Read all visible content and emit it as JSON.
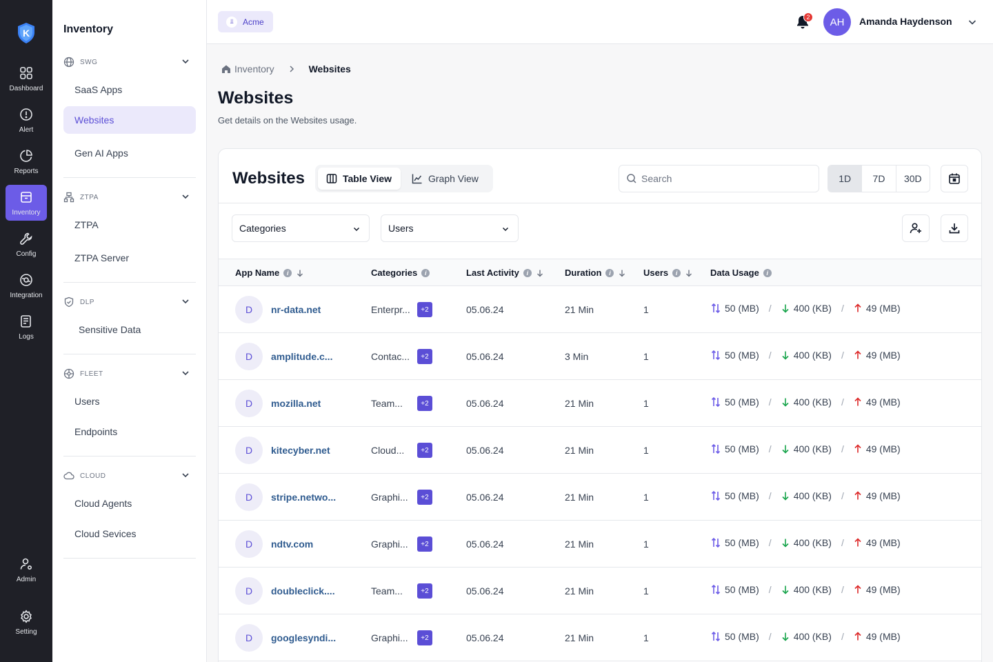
{
  "rail": {
    "items": [
      {
        "label": "Dashboard",
        "icon": "grid-icon"
      },
      {
        "label": "Alert",
        "icon": "alert-icon"
      },
      {
        "label": "Reports",
        "icon": "pie-chart-icon"
      },
      {
        "label": "Inventory",
        "icon": "archive-icon"
      },
      {
        "label": "Config",
        "icon": "wrench-icon"
      },
      {
        "label": "Integration",
        "icon": "integration-icon"
      },
      {
        "label": "Logs",
        "icon": "logs-icon"
      }
    ],
    "admin": "Admin",
    "setting": "Setting",
    "active": "Inventory"
  },
  "sidebar": {
    "title": "Inventory",
    "sections": [
      {
        "name": "SWG",
        "items": [
          "SaaS Apps",
          "Websites",
          "Gen AI Apps"
        ]
      },
      {
        "name": "ZTPA",
        "items": [
          "ZTPA",
          "ZTPA Server"
        ]
      },
      {
        "name": "DLP",
        "items": [
          "Sensitive Data"
        ]
      },
      {
        "name": "FLEET",
        "items": [
          "Users",
          "Endpoints"
        ]
      },
      {
        "name": "CLOUD",
        "items": [
          "Cloud Agents",
          "Cloud Sevices"
        ]
      }
    ],
    "active_item": "Websites"
  },
  "topbar": {
    "org": "Acme",
    "notifications": "2",
    "avatar_initials": "AH",
    "user_name": "Amanda Haydenson"
  },
  "breadcrumb": {
    "parent": "Inventory",
    "current": "Websites"
  },
  "page": {
    "title": "Websites",
    "subtitle": "Get details on the Websites usage."
  },
  "card": {
    "title": "Websites",
    "views": {
      "table": "Table View",
      "graph": "Graph View",
      "active": "table"
    },
    "search_placeholder": "Search",
    "periods": [
      "1D",
      "7D",
      "30D"
    ],
    "active_period": "1D",
    "filters": {
      "categories": "Categories",
      "users": "Users"
    }
  },
  "table": {
    "columns": [
      "App Name",
      "Categories",
      "Last Activity",
      "Duration",
      "Users",
      "Data Usage"
    ],
    "rows": [
      {
        "initial": "D",
        "app": "nr-data.net",
        "category": "Enterpr...",
        "more": "+2",
        "last": "05.06.24",
        "duration": "21 Min",
        "users": "1",
        "total": "50 (MB)",
        "down": "400 (KB)",
        "up": "49 (MB)"
      },
      {
        "initial": "D",
        "app": "amplitude.c...",
        "category": "Contac...",
        "more": "+2",
        "last": "05.06.24",
        "duration": "3 Min",
        "users": "1",
        "total": "50 (MB)",
        "down": "400 (KB)",
        "up": "49 (MB)"
      },
      {
        "initial": "D",
        "app": "mozilla.net",
        "category": "Team...",
        "more": "+2",
        "last": "05.06.24",
        "duration": "21 Min",
        "users": "1",
        "total": "50 (MB)",
        "down": "400 (KB)",
        "up": "49 (MB)"
      },
      {
        "initial": "D",
        "app": "kitecyber.net",
        "category": "Cloud...",
        "more": "+2",
        "last": "05.06.24",
        "duration": "21 Min",
        "users": "1",
        "total": "50 (MB)",
        "down": "400 (KB)",
        "up": "49 (MB)"
      },
      {
        "initial": "D",
        "app": "stripe.netwo...",
        "category": "Graphi...",
        "more": "+2",
        "last": "05.06.24",
        "duration": "21 Min",
        "users": "1",
        "total": "50 (MB)",
        "down": "400 (KB)",
        "up": "49 (MB)"
      },
      {
        "initial": "D",
        "app": "ndtv.com",
        "category": "Graphi...",
        "more": "+2",
        "last": "05.06.24",
        "duration": "21 Min",
        "users": "1",
        "total": "50 (MB)",
        "down": "400 (KB)",
        "up": "49 (MB)"
      },
      {
        "initial": "D",
        "app": "doubleclick....",
        "category": "Team...",
        "more": "+2",
        "last": "05.06.24",
        "duration": "21 Min",
        "users": "1",
        "total": "50 (MB)",
        "down": "400 (KB)",
        "up": "49 (MB)"
      },
      {
        "initial": "D",
        "app": "googlesyndi...",
        "category": "Graphi...",
        "more": "+2",
        "last": "05.06.24",
        "duration": "21 Min",
        "users": "1",
        "total": "50 (MB)",
        "down": "400 (KB)",
        "up": "49 (MB)"
      }
    ]
  },
  "colors": {
    "accent": "#6c5ce7",
    "rail_bg": "#1f2027",
    "link": "#2f5b8f",
    "down_arrow": "#16a34a",
    "up_arrow": "#dc2626"
  }
}
